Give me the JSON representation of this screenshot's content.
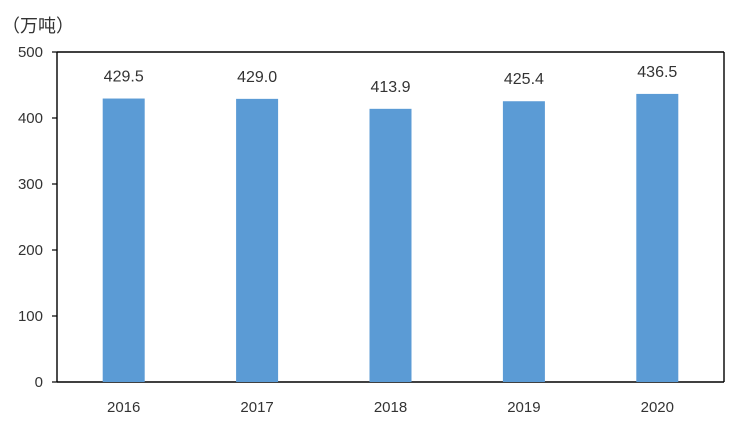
{
  "chart_data": {
    "type": "bar",
    "unit_label": "（万吨）",
    "categories": [
      "2016",
      "2017",
      "2018",
      "2019",
      "2020"
    ],
    "series": [
      {
        "values": [
          429.5,
          429.0,
          413.9,
          425.4,
          436.5
        ],
        "labels": [
          "429.5",
          "429.0",
          "413.9",
          "425.4",
          "436.5"
        ],
        "color": "#5B9BD5"
      }
    ],
    "ylim": [
      0,
      500
    ],
    "yticks": [
      0,
      100,
      200,
      300,
      400,
      500
    ],
    "grid": false,
    "legend": "none",
    "xlabel": "",
    "ylabel": ""
  }
}
